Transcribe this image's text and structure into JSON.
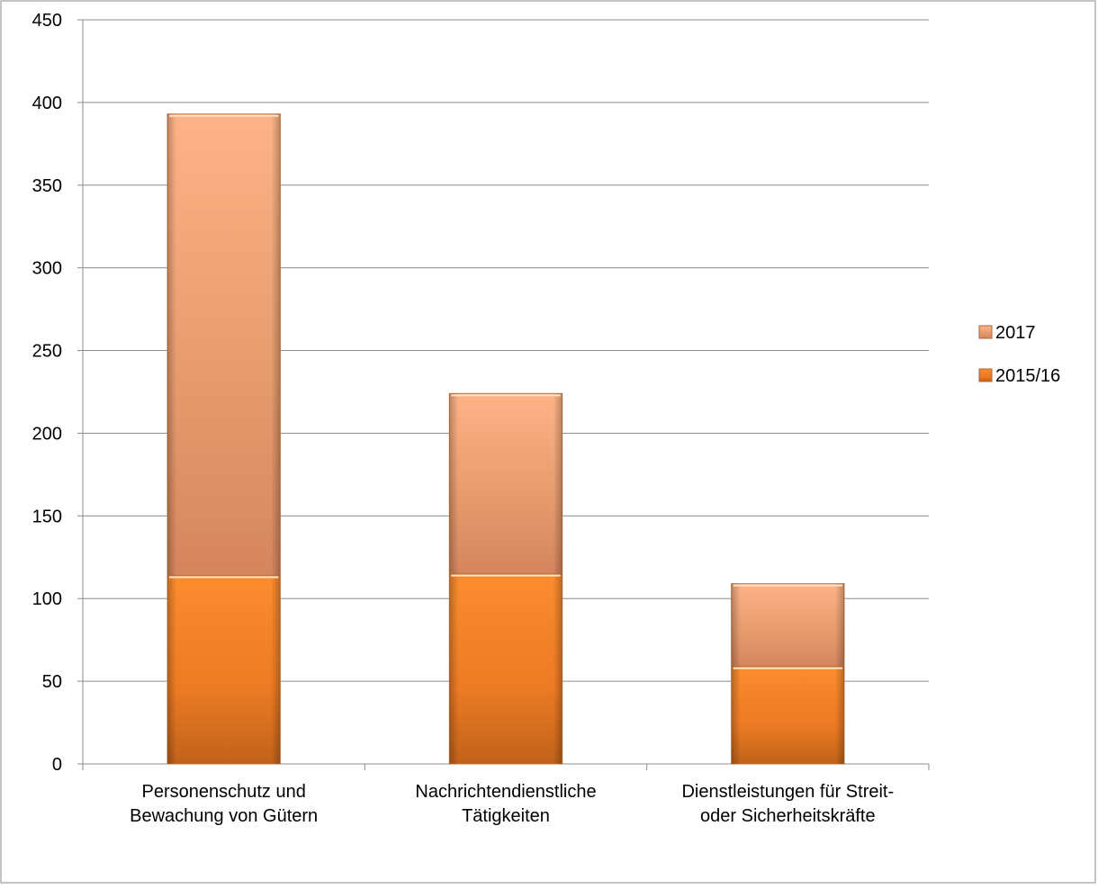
{
  "chart_data": {
    "type": "bar",
    "stacked": true,
    "categories": [
      [
        "Personenschutz und",
        "Bewachung von Gütern"
      ],
      [
        "Nachrichtendienstliche",
        "Tätigkeiten"
      ],
      [
        "Dienstleistungen für Streit-",
        "oder Sicherheitskräfte"
      ]
    ],
    "series": [
      {
        "name": "2015/16",
        "values": [
          114,
          115,
          59
        ],
        "color": "#e8751a"
      },
      {
        "name": "2017",
        "values": [
          279,
          109,
          50
        ],
        "color": "#f2a46a"
      }
    ],
    "ylim": [
      0,
      450
    ],
    "yticks": [
      0,
      50,
      100,
      150,
      200,
      250,
      300,
      350,
      400,
      450
    ],
    "grid": true,
    "legend_position": "right",
    "legend_order": [
      "2017",
      "2015/16"
    ]
  }
}
